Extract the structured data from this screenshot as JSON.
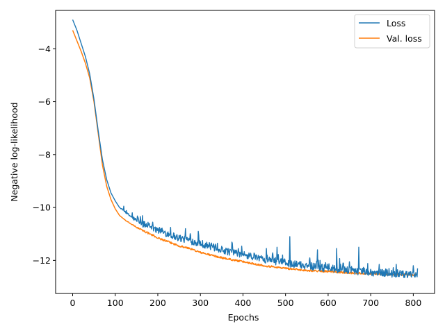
{
  "chart_data": {
    "type": "line",
    "title": "",
    "xlabel": "Epochs",
    "ylabel": "Negative log-likelihood",
    "xlim": [
      -40,
      850
    ],
    "ylim": [
      -13.25,
      -2.55
    ],
    "xticks": [
      0,
      100,
      200,
      300,
      400,
      500,
      600,
      700,
      800
    ],
    "yticks": [
      -12,
      -10,
      -8,
      -6,
      -4
    ],
    "grid": false,
    "legend": "top-right",
    "noise_start_epoch": 110,
    "series": [
      {
        "name": "Loss",
        "color": "#1f77b4",
        "points": [
          [
            0,
            -2.9
          ],
          [
            10,
            -3.3
          ],
          [
            20,
            -3.8
          ],
          [
            30,
            -4.3
          ],
          [
            40,
            -4.95
          ],
          [
            50,
            -5.9
          ],
          [
            60,
            -7.1
          ],
          [
            70,
            -8.2
          ],
          [
            80,
            -8.95
          ],
          [
            90,
            -9.45
          ],
          [
            100,
            -9.75
          ],
          [
            110,
            -10.0
          ],
          [
            125,
            -10.2
          ],
          [
            150,
            -10.5
          ],
          [
            175,
            -10.7
          ],
          [
            200,
            -10.85
          ],
          [
            225,
            -11.0
          ],
          [
            250,
            -11.15
          ],
          [
            275,
            -11.25
          ],
          [
            300,
            -11.35
          ],
          [
            350,
            -11.6
          ],
          [
            400,
            -11.8
          ],
          [
            450,
            -11.95
          ],
          [
            500,
            -12.1
          ],
          [
            550,
            -12.2
          ],
          [
            600,
            -12.3
          ],
          [
            650,
            -12.38
          ],
          [
            700,
            -12.45
          ],
          [
            750,
            -12.5
          ],
          [
            800,
            -12.55
          ],
          [
            810,
            -12.55
          ]
        ],
        "spikes": [
          [
            120,
            -9.95
          ],
          [
            140,
            -10.2
          ],
          [
            180,
            -10.6
          ],
          [
            230,
            -10.75
          ],
          [
            265,
            -10.8
          ],
          [
            295,
            -10.9
          ],
          [
            340,
            -11.35
          ],
          [
            375,
            -11.35
          ],
          [
            455,
            -11.55
          ],
          [
            480,
            -11.5
          ],
          [
            510,
            -11.1
          ],
          [
            575,
            -11.6
          ],
          [
            620,
            -11.55
          ],
          [
            672,
            -11.5
          ],
          [
            720,
            -12.15
          ],
          [
            760,
            -12.15
          ],
          [
            800,
            -12.2
          ],
          [
            810,
            -12.3
          ]
        ]
      },
      {
        "name": "Val. loss",
        "color": "#ff7f0e",
        "points": [
          [
            0,
            -3.3
          ],
          [
            10,
            -3.7
          ],
          [
            20,
            -4.1
          ],
          [
            30,
            -4.55
          ],
          [
            40,
            -5.1
          ],
          [
            50,
            -6.0
          ],
          [
            60,
            -7.2
          ],
          [
            70,
            -8.4
          ],
          [
            80,
            -9.2
          ],
          [
            90,
            -9.7
          ],
          [
            100,
            -10.05
          ],
          [
            110,
            -10.3
          ],
          [
            125,
            -10.5
          ],
          [
            150,
            -10.75
          ],
          [
            175,
            -10.95
          ],
          [
            200,
            -11.15
          ],
          [
            225,
            -11.3
          ],
          [
            250,
            -11.45
          ],
          [
            275,
            -11.55
          ],
          [
            300,
            -11.7
          ],
          [
            350,
            -11.9
          ],
          [
            400,
            -12.05
          ],
          [
            450,
            -12.2
          ],
          [
            500,
            -12.3
          ],
          [
            550,
            -12.38
          ],
          [
            600,
            -12.42
          ],
          [
            650,
            -12.47
          ],
          [
            700,
            -12.5
          ],
          [
            750,
            -12.53
          ],
          [
            800,
            -12.55
          ],
          [
            810,
            -12.55
          ]
        ],
        "spikes": []
      }
    ]
  }
}
